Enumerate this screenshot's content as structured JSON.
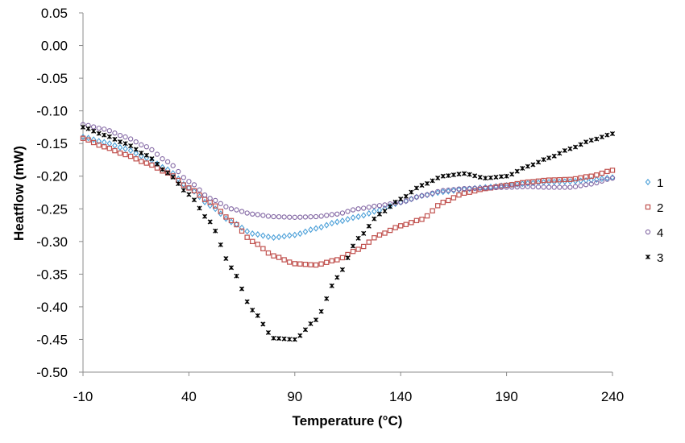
{
  "chart_data": {
    "type": "scatter",
    "xlabel": "Temperature (°C)",
    "ylabel": "Heatflow (mW)",
    "xlim": [
      -10,
      240
    ],
    "ylim": [
      -0.5,
      0.05
    ],
    "x_ticks": [
      "-10",
      "40",
      "90",
      "140",
      "190",
      "240"
    ],
    "y_ticks": [
      "0.05",
      "0.00",
      "-0.05",
      "-0.10",
      "-0.15",
      "-0.20",
      "-0.25",
      "-0.30",
      "-0.35",
      "-0.40",
      "-0.45",
      "-0.50"
    ],
    "grid": false,
    "legend_position": "right",
    "series": [
      {
        "name": "1",
        "marker": "diamond",
        "color": "#4a9fd8",
        "points": [
          [
            -10,
            -0.14
          ],
          [
            0,
            -0.148
          ],
          [
            10,
            -0.158
          ],
          [
            20,
            -0.172
          ],
          [
            30,
            -0.19
          ],
          [
            40,
            -0.218
          ],
          [
            50,
            -0.245
          ],
          [
            60,
            -0.27
          ],
          [
            70,
            -0.288
          ],
          [
            80,
            -0.294
          ],
          [
            90,
            -0.29
          ],
          [
            100,
            -0.28
          ],
          [
            110,
            -0.27
          ],
          [
            120,
            -0.262
          ],
          [
            130,
            -0.252
          ],
          [
            140,
            -0.24
          ],
          [
            150,
            -0.23
          ],
          [
            160,
            -0.224
          ],
          [
            170,
            -0.22
          ],
          [
            180,
            -0.217
          ],
          [
            190,
            -0.214
          ],
          [
            200,
            -0.211
          ],
          [
            210,
            -0.209
          ],
          [
            220,
            -0.208
          ],
          [
            230,
            -0.206
          ],
          [
            240,
            -0.202
          ]
        ]
      },
      {
        "name": "2",
        "marker": "square",
        "color": "#c0504d",
        "points": [
          [
            -10,
            -0.142
          ],
          [
            0,
            -0.155
          ],
          [
            10,
            -0.167
          ],
          [
            20,
            -0.18
          ],
          [
            30,
            -0.195
          ],
          [
            40,
            -0.218
          ],
          [
            50,
            -0.24
          ],
          [
            60,
            -0.268
          ],
          [
            70,
            -0.3
          ],
          [
            80,
            -0.322
          ],
          [
            90,
            -0.334
          ],
          [
            100,
            -0.336
          ],
          [
            110,
            -0.328
          ],
          [
            120,
            -0.312
          ],
          [
            130,
            -0.29
          ],
          [
            140,
            -0.276
          ],
          [
            150,
            -0.266
          ],
          [
            160,
            -0.24
          ],
          [
            170,
            -0.226
          ],
          [
            180,
            -0.219
          ],
          [
            190,
            -0.214
          ],
          [
            200,
            -0.209
          ],
          [
            210,
            -0.206
          ],
          [
            220,
            -0.205
          ],
          [
            230,
            -0.2
          ],
          [
            240,
            -0.191
          ]
        ]
      },
      {
        "name": "4",
        "marker": "circle",
        "color": "#8064a2",
        "points": [
          [
            -10,
            -0.121
          ],
          [
            0,
            -0.128
          ],
          [
            10,
            -0.14
          ],
          [
            20,
            -0.155
          ],
          [
            30,
            -0.178
          ],
          [
            40,
            -0.208
          ],
          [
            50,
            -0.234
          ],
          [
            60,
            -0.25
          ],
          [
            70,
            -0.258
          ],
          [
            80,
            -0.262
          ],
          [
            90,
            -0.263
          ],
          [
            100,
            -0.262
          ],
          [
            110,
            -0.258
          ],
          [
            120,
            -0.25
          ],
          [
            130,
            -0.245
          ],
          [
            140,
            -0.24
          ],
          [
            150,
            -0.23
          ],
          [
            160,
            -0.222
          ],
          [
            170,
            -0.219
          ],
          [
            180,
            -0.218
          ],
          [
            190,
            -0.217
          ],
          [
            200,
            -0.216
          ],
          [
            210,
            -0.217
          ],
          [
            220,
            -0.217
          ],
          [
            230,
            -0.212
          ],
          [
            240,
            -0.203
          ]
        ]
      },
      {
        "name": "3",
        "marker": "star",
        "color": "#000000",
        "points": [
          [
            -10,
            -0.125
          ],
          [
            0,
            -0.137
          ],
          [
            10,
            -0.15
          ],
          [
            20,
            -0.168
          ],
          [
            30,
            -0.195
          ],
          [
            40,
            -0.228
          ],
          [
            50,
            -0.27
          ],
          [
            60,
            -0.34
          ],
          [
            70,
            -0.405
          ],
          [
            80,
            -0.448
          ],
          [
            90,
            -0.45
          ],
          [
            100,
            -0.42
          ],
          [
            110,
            -0.355
          ],
          [
            120,
            -0.295
          ],
          [
            130,
            -0.258
          ],
          [
            140,
            -0.235
          ],
          [
            150,
            -0.214
          ],
          [
            160,
            -0.2
          ],
          [
            170,
            -0.196
          ],
          [
            180,
            -0.203
          ],
          [
            190,
            -0.2
          ],
          [
            200,
            -0.185
          ],
          [
            210,
            -0.172
          ],
          [
            220,
            -0.158
          ],
          [
            230,
            -0.145
          ],
          [
            240,
            -0.135
          ]
        ]
      }
    ]
  }
}
